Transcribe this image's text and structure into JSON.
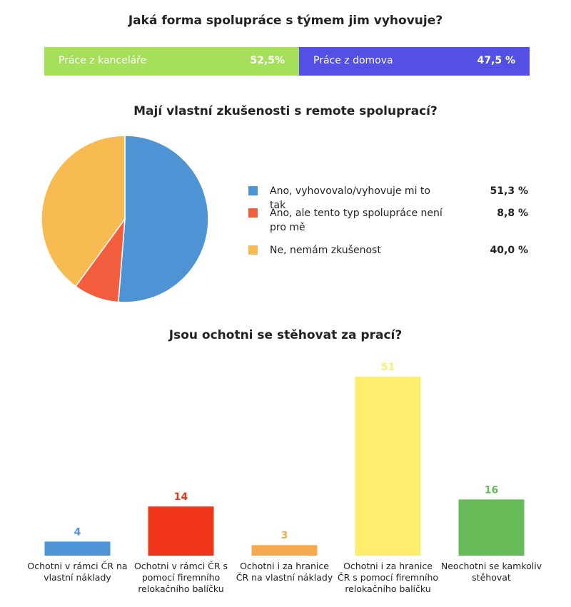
{
  "chart_data": [
    {
      "type": "stacked-bar",
      "title": "Jaká forma spolupráce s týmem jim vyhovuje?",
      "xlim": [
        0,
        100
      ],
      "series": [
        {
          "name": "Práce z kanceláře",
          "color": "#a6e05a",
          "values": [
            52.5
          ],
          "value_labels": [
            "52,5%"
          ]
        },
        {
          "name": "Práce z domova",
          "color": "#5450e6",
          "values": [
            47.5
          ],
          "value_labels": [
            "47,5 %"
          ]
        }
      ]
    },
    {
      "type": "pie",
      "title": "Mají vlastní zkušenosti s remote spoluprací?",
      "categories": [
        "Ano, vyhovovalo/vyhovuje mi to tak",
        "Ano, ale tento typ spolupráce není pro mě",
        "Ne, nemám zkušenost"
      ],
      "values": [
        51.3,
        8.8,
        40.0
      ],
      "value_labels": [
        "51,3 %",
        "8,8 %",
        "40,0 %"
      ],
      "colors": [
        "#4e94d4",
        "#f25d3d",
        "#f7bb51"
      ]
    },
    {
      "type": "bar",
      "title": "Jsou ochotni se stěhovat za prací?",
      "ylim": [
        0,
        51
      ],
      "categories": [
        "Ochotni v rámci ČR na vlastní náklady",
        "Ochotni v rámci ČR s pomocí firemního relokačního balíčku",
        "Ochotni i za hranice ČR na vlastní náklady",
        "Ochotni i za hranice ČR s pomocí firemního relokačního balíčku",
        "Neochotni se kamkoliv stěhovat"
      ],
      "values": [
        4,
        14,
        3,
        51,
        16
      ],
      "colors": [
        "#4e94d4",
        "#ef3419",
        "#f5a94e",
        "#fdee6d",
        "#68bb59"
      ]
    }
  ]
}
